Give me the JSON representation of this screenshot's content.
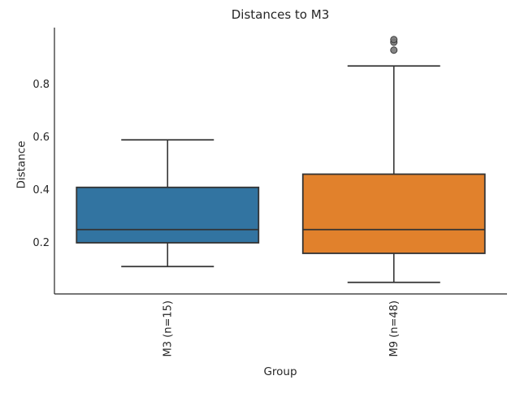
{
  "chart_data": {
    "type": "box",
    "title": "Distances to M3",
    "xlabel": "Group",
    "ylabel": "Distance",
    "categories": [
      "M3 (n=15)",
      "M9 (n=48)"
    ],
    "yticks": [
      {
        "label": "0.8",
        "value": 0.8
      },
      {
        "label": "0.6",
        "value": 0.6
      },
      {
        "label": "0.4",
        "value": 0.4
      },
      {
        "label": "0.2",
        "value": 0.2
      }
    ],
    "ylim": [
      0.01,
      1.01
    ],
    "grid": false,
    "legend": false,
    "series": [
      {
        "name": "M3 (n=15)",
        "color": "#3274A1",
        "whisker_low": 0.11,
        "q1": 0.2,
        "median": 0.25,
        "q3": 0.41,
        "whisker_high": 0.59,
        "outliers": []
      },
      {
        "name": "M9 (n=48)",
        "color": "#E1812C",
        "whisker_low": 0.05,
        "q1": 0.16,
        "median": 0.25,
        "q3": 0.46,
        "whisker_high": 0.87,
        "outliers": [
          0.93,
          0.96,
          0.97
        ]
      }
    ],
    "colors": {
      "box_edge": "#333333",
      "whisker": "#333333",
      "median": "#333333",
      "outlier_fill": "#787878",
      "outlier_edge": "#3a3a3a",
      "spine": "#262626",
      "text": "#262626"
    }
  }
}
